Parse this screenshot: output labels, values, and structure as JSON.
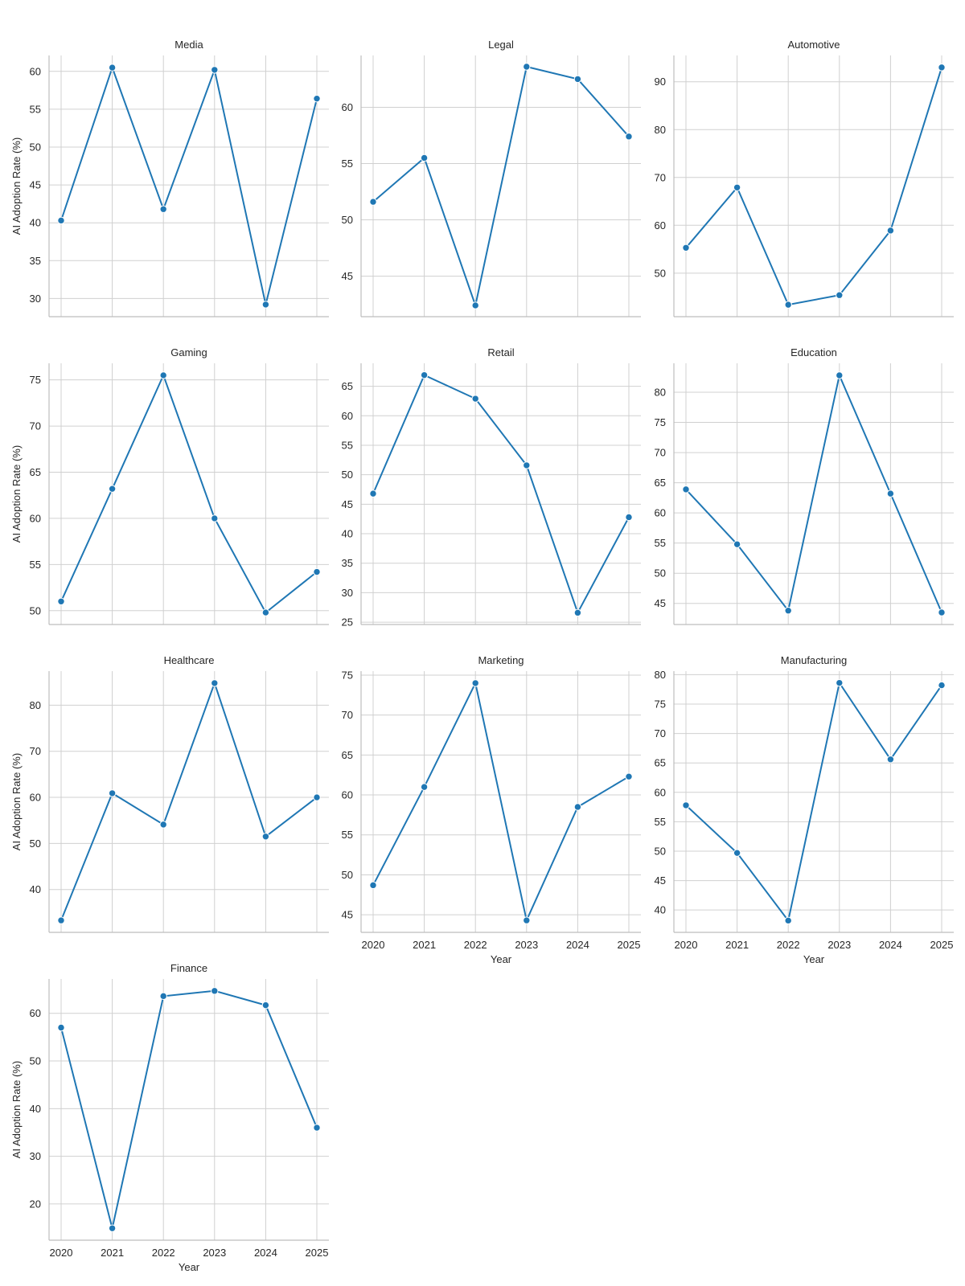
{
  "chart_data": {
    "type": "line",
    "facet_layout": "grid 4x3",
    "grid": true,
    "x": [
      2020,
      2021,
      2022,
      2023,
      2024,
      2025
    ],
    "xlabel": "Year",
    "ylabel": "AI Adoption Rate (%)",
    "line_color": "#1f77b4",
    "panels": [
      {
        "title": "Media",
        "values": [
          40.3,
          60.5,
          41.8,
          60.2,
          29.2,
          56.4
        ],
        "yticks": [
          30,
          35,
          40,
          45,
          50,
          55,
          60
        ],
        "ylim": [
          27.6,
          62.1
        ]
      },
      {
        "title": "Legal",
        "values": [
          51.6,
          55.5,
          42.4,
          63.6,
          62.5,
          57.4
        ],
        "yticks": [
          45,
          50,
          55,
          60
        ],
        "ylim": [
          41.4,
          64.6
        ]
      },
      {
        "title": "Automotive",
        "values": [
          55.3,
          67.9,
          43.4,
          45.4,
          58.9,
          93.0
        ],
        "yticks": [
          50,
          60,
          70,
          80,
          90
        ],
        "ylim": [
          40.9,
          95.5
        ]
      },
      {
        "title": "Gaming",
        "values": [
          51.0,
          63.2,
          75.5,
          60.0,
          49.8,
          54.2
        ],
        "yticks": [
          50,
          55,
          60,
          65,
          70,
          75
        ],
        "ylim": [
          48.5,
          76.8
        ]
      },
      {
        "title": "Retail",
        "values": [
          46.8,
          66.9,
          62.9,
          51.6,
          26.6,
          42.8
        ],
        "yticks": [
          25,
          30,
          35,
          40,
          45,
          50,
          55,
          60,
          65
        ],
        "ylim": [
          24.6,
          68.9
        ]
      },
      {
        "title": "Education",
        "values": [
          63.9,
          54.8,
          43.8,
          82.8,
          63.2,
          43.5
        ],
        "yticks": [
          45,
          50,
          55,
          60,
          65,
          70,
          75,
          80
        ],
        "ylim": [
          41.5,
          84.8
        ]
      },
      {
        "title": "Healthcare",
        "values": [
          33.3,
          60.9,
          54.1,
          84.8,
          51.5,
          60.0
        ],
        "yticks": [
          40,
          50,
          60,
          70,
          80
        ],
        "ylim": [
          30.7,
          87.4
        ]
      },
      {
        "title": "Marketing",
        "values": [
          48.7,
          61.0,
          74.0,
          44.3,
          58.5,
          62.3
        ],
        "yticks": [
          45,
          50,
          55,
          60,
          65,
          70,
          75
        ],
        "ylim": [
          42.8,
          75.5
        ]
      },
      {
        "title": "Manufacturing",
        "values": [
          57.8,
          49.7,
          38.2,
          78.6,
          65.6,
          78.2
        ],
        "yticks": [
          40,
          45,
          50,
          55,
          60,
          65,
          70,
          75,
          80
        ],
        "ylim": [
          36.2,
          80.6
        ]
      },
      {
        "title": "Finance",
        "values": [
          57.0,
          14.9,
          63.6,
          64.7,
          61.7,
          36.0
        ],
        "yticks": [
          20,
          30,
          40,
          50,
          60
        ],
        "ylim": [
          12.4,
          67.2
        ]
      }
    ]
  }
}
